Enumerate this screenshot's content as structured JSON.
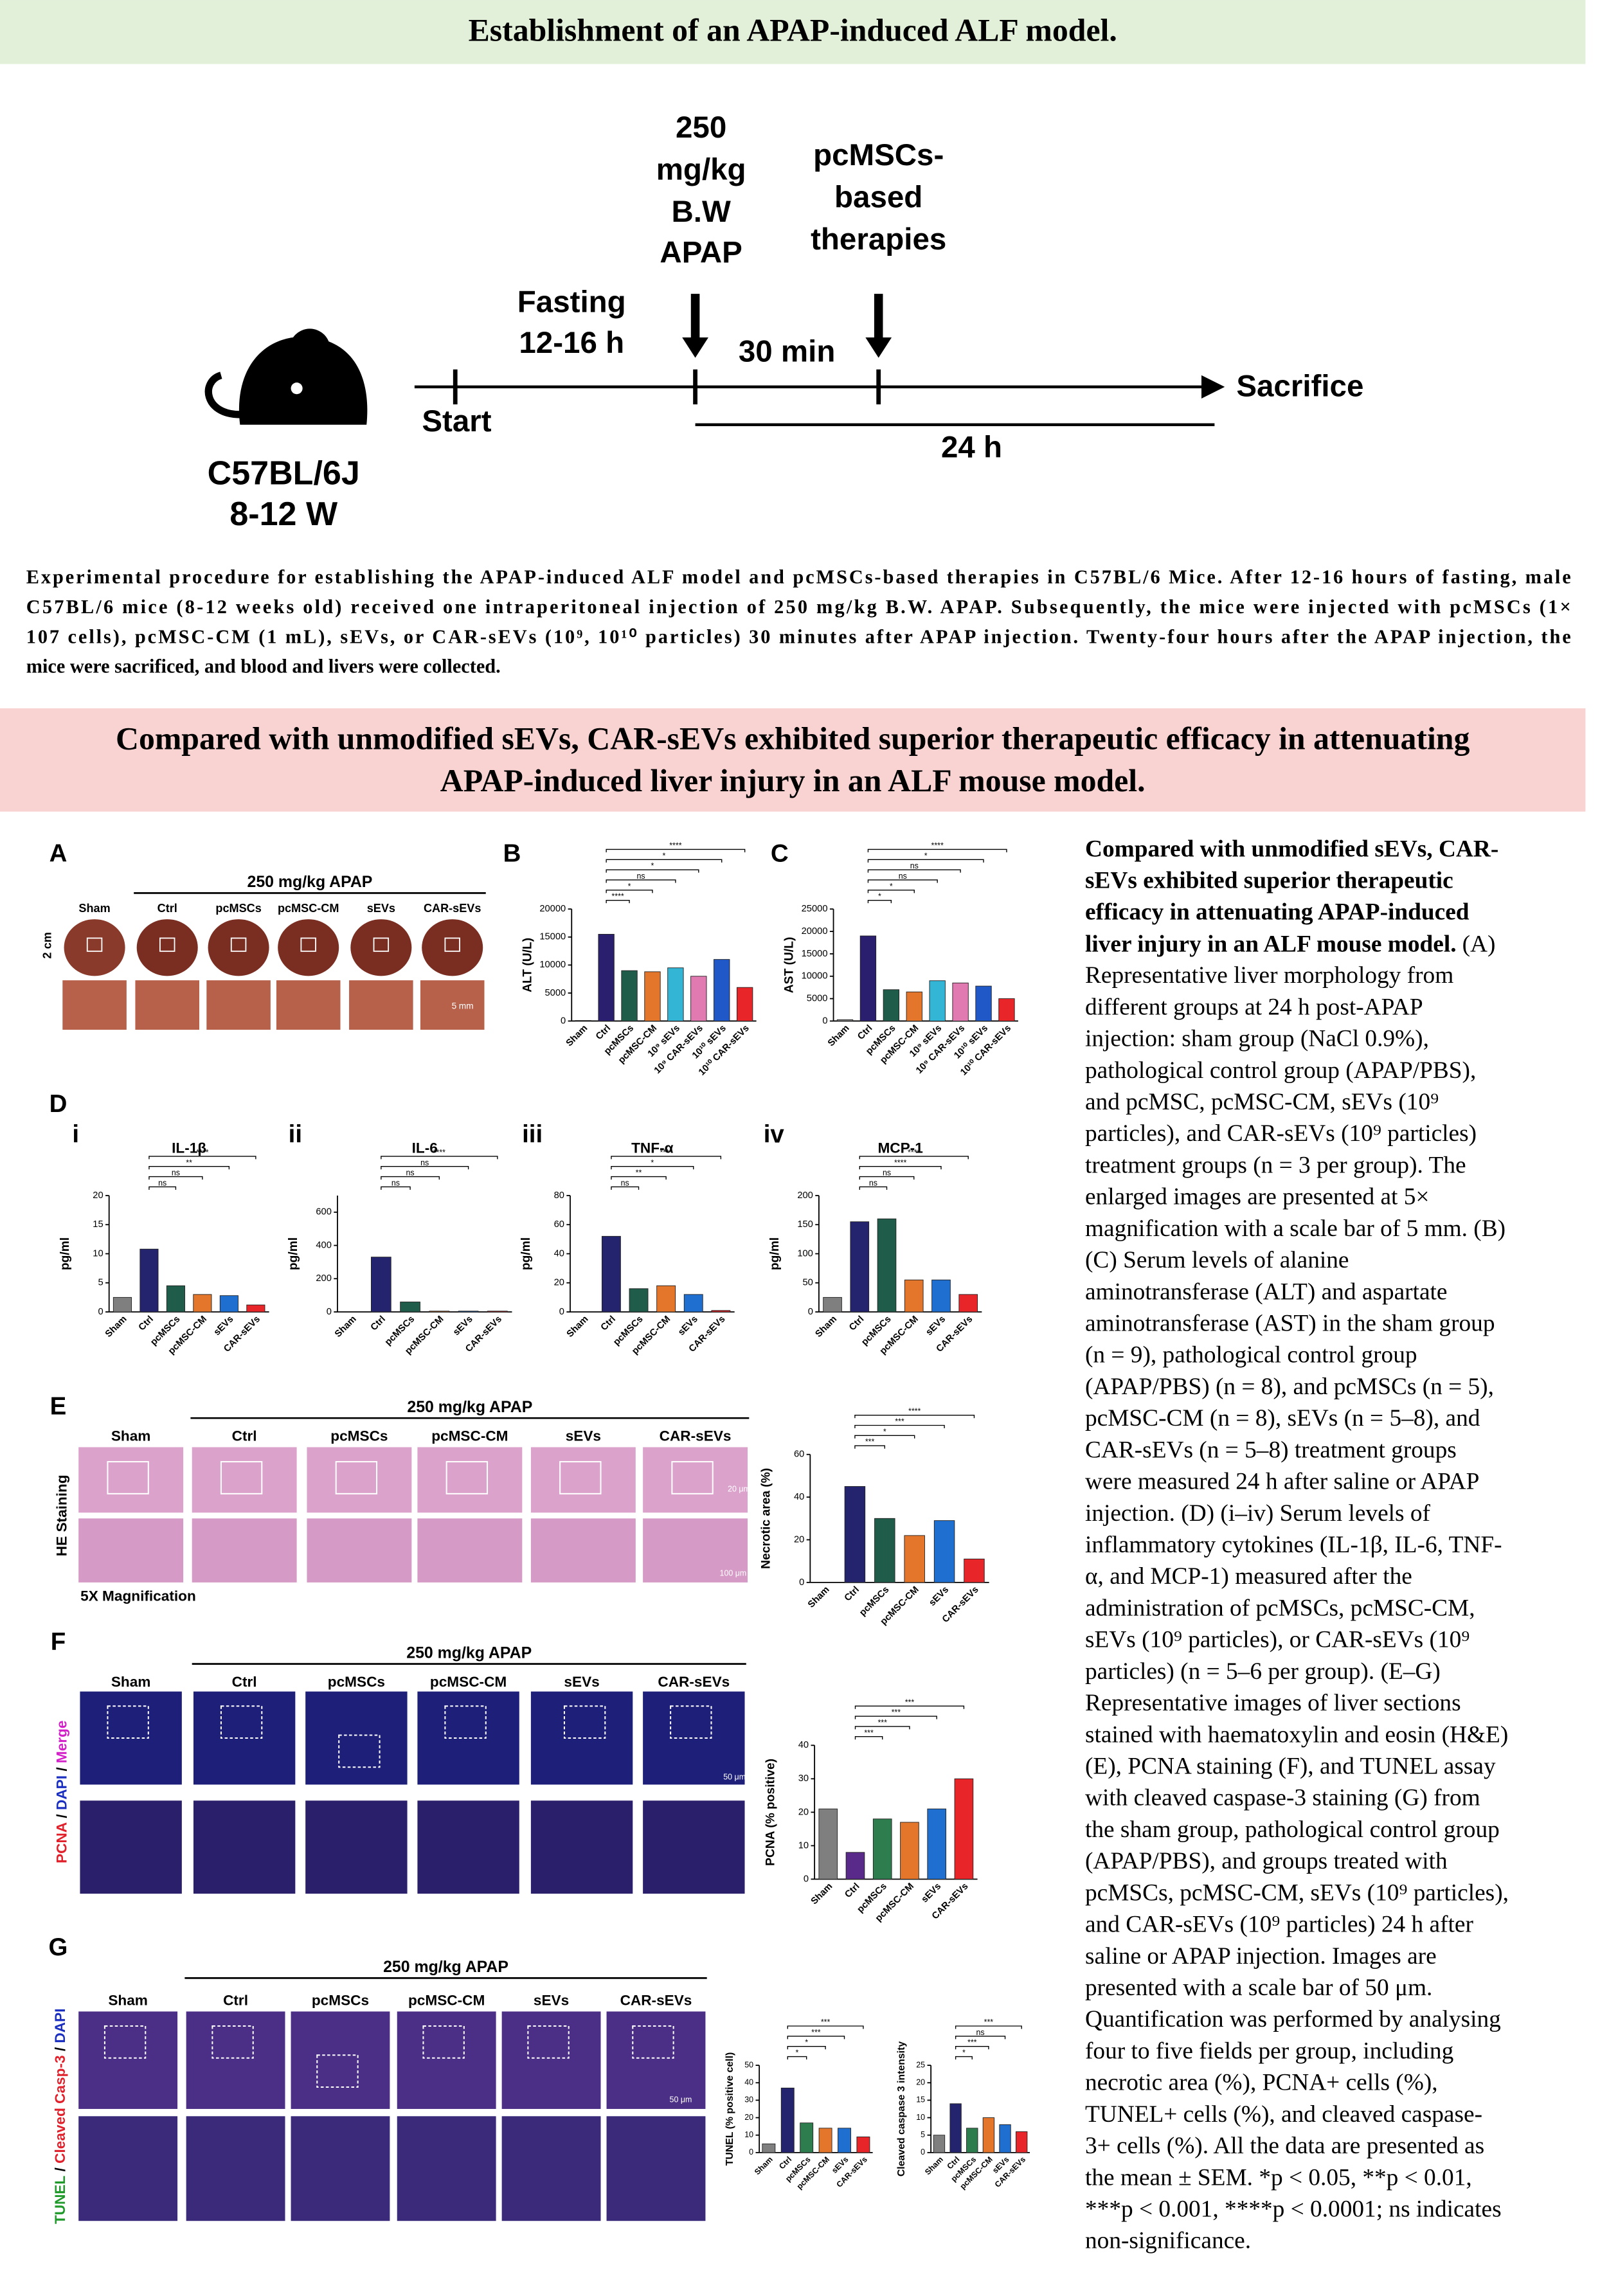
{
  "header": {
    "title": "Establishment of an APAP-induced ALF model."
  },
  "timeline": {
    "strain": "C57BL/6J",
    "age": "8-12 W",
    "start": "Start",
    "fasting": [
      "Fasting",
      "12-16 h"
    ],
    "dose": [
      "250",
      "mg/kg",
      "B.W",
      "APAP"
    ],
    "therapy": [
      "pcMSCs-",
      "based",
      "therapies"
    ],
    "interval": "30 min",
    "end": "Sacrifice",
    "duration": "24 h"
  },
  "caption": [
    "Experimental procedure for establishing the APAP-induced ALF model and pcMSCs-based therapies in C57BL/6 Mice. After 12-16 hours of fasting, male",
    "C57BL/6 mice (8-12 weeks old) received one intraperitoneal injection of 250 mg/kg B.W. APAP. Subsequently, the mice were injected with pcMSCs (1×",
    "107 cells), pcMSC-CM (1 mL), sEVs, or CAR-sEVs (10⁹, 10¹⁰ particles) 30 minutes after APAP injection. Twenty-four hours after the APAP injection, the",
    "mice were sacrificed, and blood and livers were collected."
  ],
  "banner": [
    "Compared with unmodified sEVs, CAR-sEVs exhibited superior therapeutic efficacy in attenuating",
    "APAP-induced liver injury in an ALF mouse model."
  ],
  "legend": {
    "title_lines": [
      "Compared with unmodified sEVs, CAR-",
      "sEVs exhibited superior therapeutic",
      "efficacy in attenuating APAP-induced",
      "liver injury in an ALF mouse model."
    ],
    "body_lines": [
      "(A)",
      "Representative liver morphology from",
      "different groups at 24 h post-APAP",
      "injection: sham group (NaCl 0.9%),",
      "pathological control group (APAP/PBS),",
      "and pcMSC, pcMSC-CM, sEVs (10⁹",
      "particles), and CAR-sEVs (10⁹ particles)",
      "treatment groups (n = 3 per group). The",
      "enlarged images are presented at 5×",
      "magnification with a scale bar of 5 mm. (B)",
      "(C) Serum levels of alanine",
      "aminotransferase (ALT) and aspartate",
      "aminotransferase (AST) in the sham group",
      "(n = 9), pathological control group",
      "(APAP/PBS) (n = 8), and pcMSCs (n = 5),",
      "pcMSC-CM (n = 8), sEVs (n = 5–8), and",
      "CAR-sEVs (n = 5–8) treatment groups",
      "were measured 24 h after saline or APAP",
      "injection. (D) (i–iv) Serum levels of",
      "inflammatory cytokines (IL-1β, IL-6, TNF-",
      "α, and MCP-1) measured after the",
      "administration of pcMSCs, pcMSC-CM,",
      "sEVs (10⁹ particles), or CAR-sEVs (10⁹",
      "particles) (n = 5–6 per group). (E–G)",
      "Representative images of liver sections",
      "stained with haematoxylin and eosin (H&E)",
      "(E), PCNA staining (F), and TUNEL assay",
      "with cleaved caspase-3 staining (G) from",
      "the sham group, pathological control group",
      "(APAP/PBS), and groups treated with",
      "pcMSCs, pcMSC-CM, sEVs (10⁹ particles),",
      "and CAR-sEVs (10⁹ particles) 24 h after",
      "saline or APAP injection. Images are",
      "presented with a scale bar of 50 μm.",
      "Quantification was performed by analysing",
      "four to five fields per group, including",
      "necrotic area (%), PCNA+ cells (%),",
      "TUNEL+ cells (%), and cleaved caspase-",
      "3+ cells (%). All the data are presented as",
      "the mean ± SEM. *p < 0.05, **p < 0.01,",
      "***p < 0.001, ****p < 0.0001; ns indicates",
      "non-significance."
    ]
  },
  "panels": {
    "A": {
      "label": "A",
      "treatment": "250 mg/kg APAP",
      "groups": [
        "Sham",
        "Ctrl",
        "pcMSCs",
        "pcMSC-CM",
        "sEVs",
        "CAR-sEVs"
      ],
      "scale_axis": "2 cm",
      "scale_bars": [
        "5 mm"
      ]
    },
    "D": {
      "label": "D"
    },
    "E": {
      "label": "E",
      "treatment": "250 mg/kg APAP",
      "groups": [
        "Sham",
        "Ctrl",
        "pcMSCs",
        "pcMSC-CM",
        "sEVs",
        "CAR-sEVs"
      ],
      "stain": [
        {
          "text": "HE Staining",
          "color": "#000000"
        }
      ],
      "magnification": "5X Magnification",
      "scale_bars": [
        "20 μm",
        "100 μm"
      ]
    },
    "F": {
      "label": "F",
      "treatment": "250 mg/kg APAP",
      "groups": [
        "Sham",
        "Ctrl",
        "pcMSCs",
        "pcMSC-CM",
        "sEVs",
        "CAR-sEVs"
      ],
      "stain": [
        {
          "text": "PCNA",
          "color": "#e0202a"
        },
        {
          "text": " / ",
          "color": "#000000"
        },
        {
          "text": "DAPI",
          "color": "#1a2fc0"
        },
        {
          "text": " / ",
          "color": "#000000"
        },
        {
          "text": "Merge",
          "color": "#d21fc8"
        }
      ],
      "scale_bars": [
        "50 μm"
      ]
    },
    "G": {
      "label": "G",
      "treatment": "250 mg/kg APAP",
      "groups": [
        "Sham",
        "Ctrl",
        "pcMSCs",
        "pcMSC-CM",
        "sEVs",
        "CAR-sEVs"
      ],
      "stain": [
        {
          "text": "TUNEL",
          "color": "#1f9a2a"
        },
        {
          "text": " / ",
          "color": "#000000"
        },
        {
          "text": "Cleaved Casp-3",
          "color": "#e0202a"
        },
        {
          "text": " / ",
          "color": "#000000"
        },
        {
          "text": "DAPI",
          "color": "#1a2fc0"
        }
      ],
      "scale_bars": [
        "50 μm"
      ]
    }
  },
  "chart_data": [
    {
      "type": "bar",
      "label": "B",
      "y_label": "ALT (U/L)",
      "categories": [
        "Sham",
        "Ctrl",
        "pcMSCs",
        "pcMSC-CM",
        "10⁹ sEVs",
        "10⁹ CAR-sEVs",
        "10¹⁰ sEVs",
        "10¹⁰ CAR-sEVs"
      ],
      "values": [
        100,
        15500,
        9000,
        8800,
        9500,
        8000,
        11000,
        6000
      ],
      "colors": [
        "#7f7f7f",
        "#2a1f6e",
        "#1f5c4a",
        "#e3762b",
        "#33b5d6",
        "#e07ab0",
        "#2058c8",
        "#e8262a"
      ],
      "ylim": [
        0,
        20000
      ],
      "yticks": [
        0,
        5000,
        10000,
        15000,
        20000
      ],
      "significance": [
        "****",
        "*",
        "*",
        "ns",
        "*",
        "****"
      ]
    },
    {
      "type": "bar",
      "label": "C",
      "y_label": "AST (U/L)",
      "categories": [
        "Sham",
        "Ctrl",
        "pcMSCs",
        "pcMSC-CM",
        "10⁹ sEVs",
        "10⁹ CAR-sEVs",
        "10¹⁰ sEVs",
        "10¹⁰ CAR-sEVs"
      ],
      "values": [
        300,
        19000,
        7000,
        6500,
        9000,
        8500,
        7800,
        5000
      ],
      "colors": [
        "#7f7f7f",
        "#2a1f6e",
        "#1f5c4a",
        "#e3762b",
        "#33b5d6",
        "#e07ab0",
        "#2058c8",
        "#e8262a"
      ],
      "ylim": [
        0,
        25000
      ],
      "yticks": [
        0,
        5000,
        10000,
        15000,
        20000,
        25000
      ],
      "significance": [
        "****",
        "*",
        "ns",
        "ns",
        "*",
        "*"
      ]
    },
    {
      "type": "bar",
      "label": "i",
      "title": "IL-1β",
      "y_label": "pg/ml",
      "categories": [
        "Sham",
        "Ctrl",
        "pcMSCs",
        "pcMSC-CM",
        "sEVs",
        "CAR-sEVs"
      ],
      "values": [
        2.5,
        10.8,
        4.5,
        3,
        2.8,
        1.2
      ],
      "colors": [
        "#7f7f7f",
        "#24246e",
        "#1f5c4a",
        "#e3762b",
        "#1f6fd0",
        "#e8262a"
      ],
      "ylim": [
        0,
        20
      ],
      "yticks": [
        0,
        5,
        10,
        15,
        20
      ],
      "significance": [
        "****",
        "**",
        "ns",
        "ns"
      ]
    },
    {
      "type": "bar",
      "label": "ii",
      "title": "IL-6",
      "y_label": "pg/ml",
      "categories": [
        "Sham",
        "Ctrl",
        "pcMSCs",
        "pcMSC-CM",
        "sEVs",
        "CAR-sEVs"
      ],
      "values": [
        0,
        330,
        60,
        5,
        5,
        5
      ],
      "colors": [
        "#7f7f7f",
        "#24246e",
        "#1f5c4a",
        "#e3762b",
        "#1f6fd0",
        "#e8262a"
      ],
      "ylim": [
        0,
        700
      ],
      "yticks": [
        0,
        200,
        400,
        600
      ],
      "significance": [
        "****",
        "ns",
        "ns",
        "ns"
      ]
    },
    {
      "type": "bar",
      "label": "iii",
      "title": "TNF-α",
      "y_label": "pg/ml",
      "categories": [
        "Sham",
        "Ctrl",
        "pcMSCs",
        "pcMSC-CM",
        "sEVs",
        "CAR-sEVs"
      ],
      "values": [
        0,
        52,
        16,
        18,
        12,
        1
      ],
      "colors": [
        "#7f7f7f",
        "#24246e",
        "#1f5c4a",
        "#e3762b",
        "#1f6fd0",
        "#e8262a"
      ],
      "ylim": [
        0,
        80
      ],
      "yticks": [
        0,
        20,
        40,
        60,
        80
      ],
      "significance": [
        "****",
        "*",
        "**",
        "ns"
      ]
    },
    {
      "type": "bar",
      "label": "iv",
      "title": "MCP-1",
      "y_label": "pg/ml",
      "categories": [
        "Sham",
        "Ctrl",
        "pcMSCs",
        "pcMSC-CM",
        "sEVs",
        "CAR-sEVs"
      ],
      "values": [
        25,
        155,
        160,
        55,
        55,
        30
      ],
      "colors": [
        "#7f7f7f",
        "#24246e",
        "#1f5c4a",
        "#e3762b",
        "#1f6fd0",
        "#e8262a"
      ],
      "ylim": [
        0,
        200
      ],
      "yticks": [
        0,
        50,
        100,
        150,
        200
      ],
      "significance": [
        "****",
        "****",
        "ns",
        "ns"
      ]
    },
    {
      "type": "bar",
      "y_label": "Necrotic area (%)",
      "categories": [
        "Sham",
        "Ctrl",
        "pcMSCs",
        "pcMSC-CM",
        "sEVs",
        "CAR-sEVs"
      ],
      "values": [
        0,
        45,
        30,
        22,
        29,
        11
      ],
      "colors": [
        "#7f7f7f",
        "#24246e",
        "#1f5c4a",
        "#e3762b",
        "#1f6fd0",
        "#e8262a"
      ],
      "ylim": [
        0,
        60
      ],
      "yticks": [
        0,
        20,
        40,
        60
      ],
      "significance": [
        "****",
        "***",
        "*",
        "***"
      ]
    },
    {
      "type": "bar",
      "y_label": "PCNA (% positive)",
      "categories": [
        "Sham",
        "Ctrl",
        "pcMSCs",
        "pcMSC-CM",
        "sEVs",
        "CAR-sEVs"
      ],
      "values": [
        21,
        8,
        18,
        17,
        21,
        30
      ],
      "colors": [
        "#7f7f7f",
        "#5a2a8a",
        "#2e7d4f",
        "#e3762b",
        "#1f6fd0",
        "#e8262a"
      ],
      "ylim": [
        0,
        40
      ],
      "yticks": [
        0,
        10,
        20,
        30,
        40
      ],
      "significance": [
        "***",
        "***",
        "***",
        "***"
      ]
    },
    {
      "type": "bar",
      "y_label": "TUNEL (% positive cell)",
      "categories": [
        "Sham",
        "Ctrl",
        "pcMSCs",
        "pcMSC-CM",
        "sEVs",
        "CAR-sEVs"
      ],
      "values": [
        5,
        37,
        17,
        14,
        14,
        9
      ],
      "colors": [
        "#7f7f7f",
        "#24246e",
        "#2e7d4f",
        "#e3762b",
        "#1f6fd0",
        "#e8262a"
      ],
      "ylim": [
        0,
        50
      ],
      "yticks": [
        0,
        10,
        20,
        30,
        40,
        50
      ],
      "significance": [
        "***",
        "***",
        "*",
        "*"
      ]
    },
    {
      "type": "bar",
      "y_label": "Cleaved caspase 3 intensity",
      "categories": [
        "Sham",
        "Ctrl",
        "pcMSCs",
        "pcMSC-CM",
        "sEVs",
        "CAR-sEVs"
      ],
      "values": [
        5,
        14,
        7,
        10,
        8,
        6
      ],
      "colors": [
        "#7f7f7f",
        "#24246e",
        "#2e7d4f",
        "#e3762b",
        "#1f6fd0",
        "#e8262a"
      ],
      "ylim": [
        0,
        25
      ],
      "yticks": [
        0,
        5,
        10,
        15,
        20,
        25
      ],
      "significance": [
        "***",
        "ns",
        "***",
        "*"
      ]
    }
  ]
}
